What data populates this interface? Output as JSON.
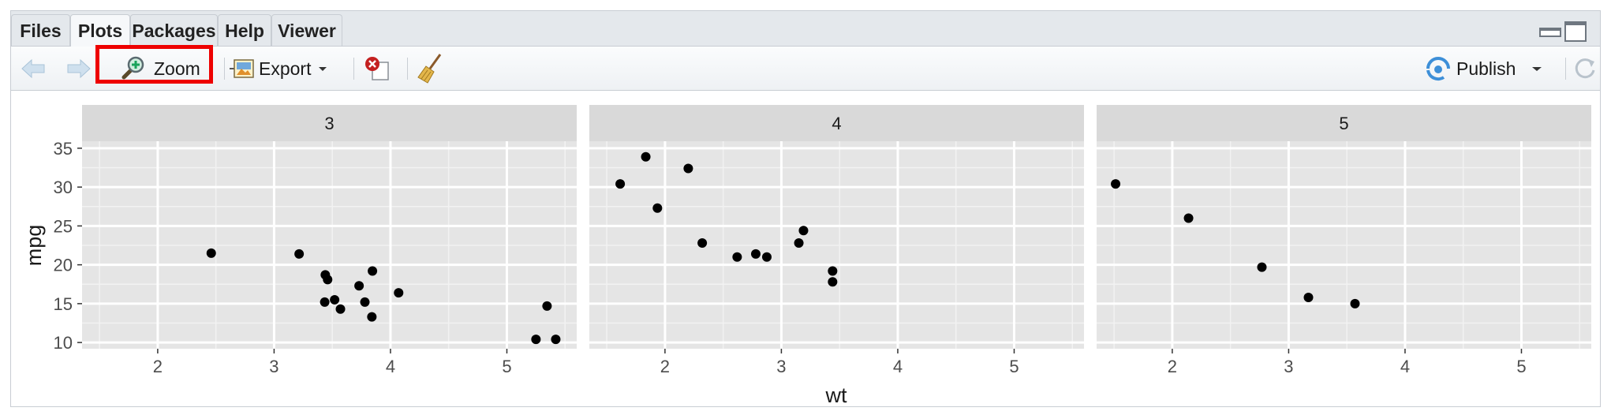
{
  "tabs": [
    {
      "label": "Files",
      "active": false
    },
    {
      "label": "Plots",
      "active": true
    },
    {
      "label": "Packages",
      "active": false
    },
    {
      "label": "Help",
      "active": false
    },
    {
      "label": "Viewer",
      "active": false
    }
  ],
  "toolbar": {
    "zoom_label": "Zoom",
    "export_label": "Export",
    "publish_label": "Publish"
  },
  "icons": {
    "back": "back-arrow-icon",
    "forward": "forward-arrow-icon",
    "zoom": "magnifier-icon",
    "export": "export-image-icon",
    "remove": "remove-plot-icon",
    "clear": "broom-icon",
    "publish": "publish-icon",
    "refresh": "refresh-icon"
  },
  "colors": {
    "highlight": "#ee0000",
    "panel_bg": "#e5e5e5",
    "strip_bg": "#d9d9d9",
    "point": "#000000"
  },
  "chart_data": {
    "type": "scatter",
    "xlabel": "wt",
    "ylabel": "mpg",
    "xlim": [
      1.35,
      5.6
    ],
    "ylim": [
      9.2,
      35.9
    ],
    "xticks": [
      2,
      3,
      4,
      5
    ],
    "yticks": [
      10,
      15,
      20,
      25,
      30,
      35
    ],
    "grid": true,
    "facets": [
      {
        "label": "3",
        "points": [
          {
            "x": 2.46,
            "y": 21.5
          },
          {
            "x": 3.215,
            "y": 21.4
          },
          {
            "x": 3.44,
            "y": 18.7
          },
          {
            "x": 3.46,
            "y": 18.1
          },
          {
            "x": 3.57,
            "y": 14.3
          },
          {
            "x": 4.07,
            "y": 16.4
          },
          {
            "x": 3.73,
            "y": 17.3
          },
          {
            "x": 3.78,
            "y": 15.2
          },
          {
            "x": 5.25,
            "y": 10.4
          },
          {
            "x": 5.42,
            "y": 10.4
          },
          {
            "x": 5.345,
            "y": 14.7
          },
          {
            "x": 3.52,
            "y": 15.5
          },
          {
            "x": 3.435,
            "y": 15.2
          },
          {
            "x": 3.84,
            "y": 13.3
          },
          {
            "x": 3.845,
            "y": 19.2
          }
        ]
      },
      {
        "label": "4",
        "points": [
          {
            "x": 2.62,
            "y": 21.0
          },
          {
            "x": 2.875,
            "y": 21.0
          },
          {
            "x": 2.32,
            "y": 22.8
          },
          {
            "x": 3.19,
            "y": 24.4
          },
          {
            "x": 3.15,
            "y": 22.8
          },
          {
            "x": 3.44,
            "y": 19.2
          },
          {
            "x": 3.44,
            "y": 17.8
          },
          {
            "x": 2.2,
            "y": 32.4
          },
          {
            "x": 1.615,
            "y": 30.4
          },
          {
            "x": 1.835,
            "y": 33.9
          },
          {
            "x": 1.935,
            "y": 27.3
          },
          {
            "x": 2.78,
            "y": 21.4
          }
        ]
      },
      {
        "label": "5",
        "points": [
          {
            "x": 2.14,
            "y": 26.0
          },
          {
            "x": 1.513,
            "y": 30.4
          },
          {
            "x": 3.17,
            "y": 15.8
          },
          {
            "x": 2.77,
            "y": 19.7
          },
          {
            "x": 3.57,
            "y": 15.0
          }
        ]
      }
    ]
  }
}
